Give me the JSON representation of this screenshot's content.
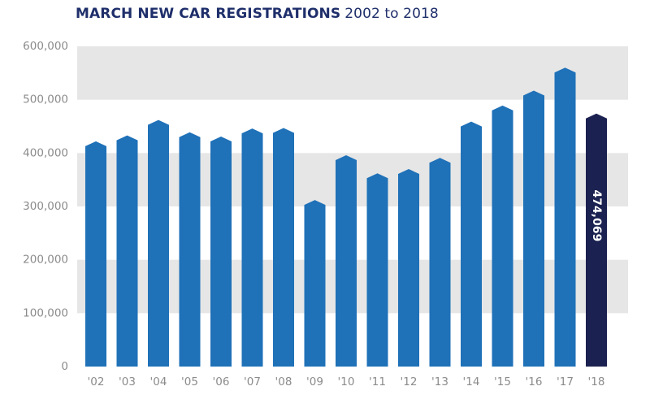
{
  "chart_data": {
    "type": "bar",
    "title": "MARCH NEW CAR REGISTRATIONS",
    "subtitle": "2002 to 2018",
    "categories": [
      "'02",
      "'03",
      "'04",
      "'05",
      "'06",
      "'07",
      "'08",
      "'09",
      "'10",
      "'11",
      "'12",
      "'13",
      "'14",
      "'15",
      "'16",
      "'17",
      "'18"
    ],
    "values": [
      422000,
      433000,
      462000,
      439000,
      431000,
      446000,
      447000,
      312000,
      396000,
      362000,
      370000,
      391000,
      459000,
      489000,
      517000,
      560000,
      474069
    ],
    "highlight_index": 16,
    "highlight_label": "474,069",
    "ylim": [
      0,
      600000
    ],
    "yticks": [
      0,
      100000,
      200000,
      300000,
      400000,
      500000,
      600000
    ],
    "ytick_labels": [
      "0",
      "100,000",
      "200,000",
      "300,000",
      "400,000",
      "500,000",
      "600,000"
    ],
    "xlabel": "",
    "ylabel": "",
    "grid": "alternating horizontal bands",
    "colors": {
      "bar": "#1f71b8",
      "highlight_bar": "#1b2150",
      "band": "#e6e6e6",
      "tick_text": "#8b8b8b",
      "title": "#1f2f6b"
    }
  }
}
